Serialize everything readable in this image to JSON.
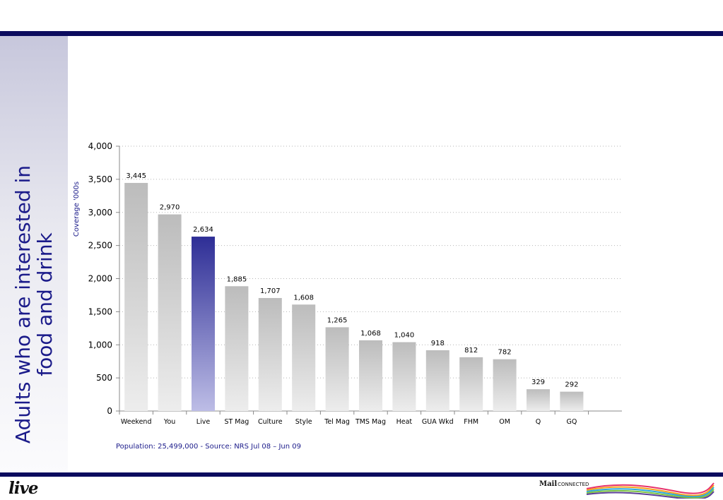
{
  "slide": {
    "title": "Adults who are interested in food and drink",
    "source": "Population: 25,499,000 - Source: NRS Jul 08 – Jun 09",
    "footer_logo": "live",
    "brand_name_bold": "Mail",
    "brand_name_light": "CONNECTED"
  },
  "colors": {
    "header_bar": "#0b0b5e",
    "title_text": "#1b1b8a",
    "bar_gray_top": "#bcbcbc",
    "bar_gray_bottom": "#ededed",
    "bar_highlight_top": "#2e2e96",
    "bar_highlight_bottom": "#bdbde6"
  },
  "chart_data": {
    "type": "bar",
    "categories": [
      "Weekend",
      "You",
      "Live",
      "ST Mag",
      "Culture",
      "Style",
      "Tel Mag",
      "TMS Mag",
      "Heat",
      "GUA Wkd",
      "FHM",
      "OM",
      "Q",
      "GQ"
    ],
    "values": [
      3445,
      2970,
      2634,
      1885,
      1707,
      1608,
      1265,
      1068,
      1040,
      918,
      812,
      782,
      329,
      292
    ],
    "value_labels": [
      "3,445",
      "2,970",
      "2,634",
      "1,885",
      "1,707",
      "1,608",
      "1,265",
      "1,068",
      "1,040",
      "918",
      "812",
      "782",
      "329",
      "292"
    ],
    "highlight_category": "Live",
    "ylabel": "Coverage '000s",
    "ylim": [
      0,
      4000
    ],
    "yticks": [
      0,
      500,
      1000,
      1500,
      2000,
      2500,
      3000,
      3500,
      4000
    ],
    "ytick_labels": [
      "0",
      "500",
      "1,000",
      "1,500",
      "2,000",
      "2,500",
      "3,000",
      "3,500",
      "4,000"
    ],
    "grid": "horizontal dotted",
    "legend": "none"
  }
}
